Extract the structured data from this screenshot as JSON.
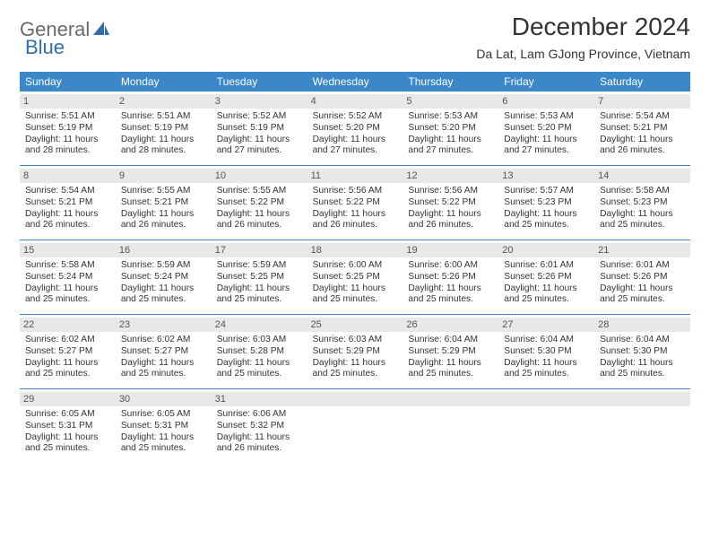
{
  "logo": {
    "part1": "General",
    "part2": "Blue"
  },
  "title": "December 2024",
  "location": "Da Lat, Lam GJong Province, Vietnam",
  "colors": {
    "header_bg": "#3b87c8",
    "daynum_bg": "#e8e8e8",
    "text": "#333333",
    "logo_gray": "#6a6a6a",
    "logo_blue": "#2f6fb0"
  },
  "days_of_week": [
    "Sunday",
    "Monday",
    "Tuesday",
    "Wednesday",
    "Thursday",
    "Friday",
    "Saturday"
  ],
  "weeks": [
    [
      {
        "n": "1",
        "sr": "Sunrise: 5:51 AM",
        "ss": "Sunset: 5:19 PM",
        "d1": "Daylight: 11 hours",
        "d2": "and 28 minutes."
      },
      {
        "n": "2",
        "sr": "Sunrise: 5:51 AM",
        "ss": "Sunset: 5:19 PM",
        "d1": "Daylight: 11 hours",
        "d2": "and 28 minutes."
      },
      {
        "n": "3",
        "sr": "Sunrise: 5:52 AM",
        "ss": "Sunset: 5:19 PM",
        "d1": "Daylight: 11 hours",
        "d2": "and 27 minutes."
      },
      {
        "n": "4",
        "sr": "Sunrise: 5:52 AM",
        "ss": "Sunset: 5:20 PM",
        "d1": "Daylight: 11 hours",
        "d2": "and 27 minutes."
      },
      {
        "n": "5",
        "sr": "Sunrise: 5:53 AM",
        "ss": "Sunset: 5:20 PM",
        "d1": "Daylight: 11 hours",
        "d2": "and 27 minutes."
      },
      {
        "n": "6",
        "sr": "Sunrise: 5:53 AM",
        "ss": "Sunset: 5:20 PM",
        "d1": "Daylight: 11 hours",
        "d2": "and 27 minutes."
      },
      {
        "n": "7",
        "sr": "Sunrise: 5:54 AM",
        "ss": "Sunset: 5:21 PM",
        "d1": "Daylight: 11 hours",
        "d2": "and 26 minutes."
      }
    ],
    [
      {
        "n": "8",
        "sr": "Sunrise: 5:54 AM",
        "ss": "Sunset: 5:21 PM",
        "d1": "Daylight: 11 hours",
        "d2": "and 26 minutes."
      },
      {
        "n": "9",
        "sr": "Sunrise: 5:55 AM",
        "ss": "Sunset: 5:21 PM",
        "d1": "Daylight: 11 hours",
        "d2": "and 26 minutes."
      },
      {
        "n": "10",
        "sr": "Sunrise: 5:55 AM",
        "ss": "Sunset: 5:22 PM",
        "d1": "Daylight: 11 hours",
        "d2": "and 26 minutes."
      },
      {
        "n": "11",
        "sr": "Sunrise: 5:56 AM",
        "ss": "Sunset: 5:22 PM",
        "d1": "Daylight: 11 hours",
        "d2": "and 26 minutes."
      },
      {
        "n": "12",
        "sr": "Sunrise: 5:56 AM",
        "ss": "Sunset: 5:22 PM",
        "d1": "Daylight: 11 hours",
        "d2": "and 26 minutes."
      },
      {
        "n": "13",
        "sr": "Sunrise: 5:57 AM",
        "ss": "Sunset: 5:23 PM",
        "d1": "Daylight: 11 hours",
        "d2": "and 25 minutes."
      },
      {
        "n": "14",
        "sr": "Sunrise: 5:58 AM",
        "ss": "Sunset: 5:23 PM",
        "d1": "Daylight: 11 hours",
        "d2": "and 25 minutes."
      }
    ],
    [
      {
        "n": "15",
        "sr": "Sunrise: 5:58 AM",
        "ss": "Sunset: 5:24 PM",
        "d1": "Daylight: 11 hours",
        "d2": "and 25 minutes."
      },
      {
        "n": "16",
        "sr": "Sunrise: 5:59 AM",
        "ss": "Sunset: 5:24 PM",
        "d1": "Daylight: 11 hours",
        "d2": "and 25 minutes."
      },
      {
        "n": "17",
        "sr": "Sunrise: 5:59 AM",
        "ss": "Sunset: 5:25 PM",
        "d1": "Daylight: 11 hours",
        "d2": "and 25 minutes."
      },
      {
        "n": "18",
        "sr": "Sunrise: 6:00 AM",
        "ss": "Sunset: 5:25 PM",
        "d1": "Daylight: 11 hours",
        "d2": "and 25 minutes."
      },
      {
        "n": "19",
        "sr": "Sunrise: 6:00 AM",
        "ss": "Sunset: 5:26 PM",
        "d1": "Daylight: 11 hours",
        "d2": "and 25 minutes."
      },
      {
        "n": "20",
        "sr": "Sunrise: 6:01 AM",
        "ss": "Sunset: 5:26 PM",
        "d1": "Daylight: 11 hours",
        "d2": "and 25 minutes."
      },
      {
        "n": "21",
        "sr": "Sunrise: 6:01 AM",
        "ss": "Sunset: 5:26 PM",
        "d1": "Daylight: 11 hours",
        "d2": "and 25 minutes."
      }
    ],
    [
      {
        "n": "22",
        "sr": "Sunrise: 6:02 AM",
        "ss": "Sunset: 5:27 PM",
        "d1": "Daylight: 11 hours",
        "d2": "and 25 minutes."
      },
      {
        "n": "23",
        "sr": "Sunrise: 6:02 AM",
        "ss": "Sunset: 5:27 PM",
        "d1": "Daylight: 11 hours",
        "d2": "and 25 minutes."
      },
      {
        "n": "24",
        "sr": "Sunrise: 6:03 AM",
        "ss": "Sunset: 5:28 PM",
        "d1": "Daylight: 11 hours",
        "d2": "and 25 minutes."
      },
      {
        "n": "25",
        "sr": "Sunrise: 6:03 AM",
        "ss": "Sunset: 5:29 PM",
        "d1": "Daylight: 11 hours",
        "d2": "and 25 minutes."
      },
      {
        "n": "26",
        "sr": "Sunrise: 6:04 AM",
        "ss": "Sunset: 5:29 PM",
        "d1": "Daylight: 11 hours",
        "d2": "and 25 minutes."
      },
      {
        "n": "27",
        "sr": "Sunrise: 6:04 AM",
        "ss": "Sunset: 5:30 PM",
        "d1": "Daylight: 11 hours",
        "d2": "and 25 minutes."
      },
      {
        "n": "28",
        "sr": "Sunrise: 6:04 AM",
        "ss": "Sunset: 5:30 PM",
        "d1": "Daylight: 11 hours",
        "d2": "and 25 minutes."
      }
    ],
    [
      {
        "n": "29",
        "sr": "Sunrise: 6:05 AM",
        "ss": "Sunset: 5:31 PM",
        "d1": "Daylight: 11 hours",
        "d2": "and 25 minutes."
      },
      {
        "n": "30",
        "sr": "Sunrise: 6:05 AM",
        "ss": "Sunset: 5:31 PM",
        "d1": "Daylight: 11 hours",
        "d2": "and 25 minutes."
      },
      {
        "n": "31",
        "sr": "Sunrise: 6:06 AM",
        "ss": "Sunset: 5:32 PM",
        "d1": "Daylight: 11 hours",
        "d2": "and 26 minutes."
      },
      null,
      null,
      null,
      null
    ]
  ]
}
